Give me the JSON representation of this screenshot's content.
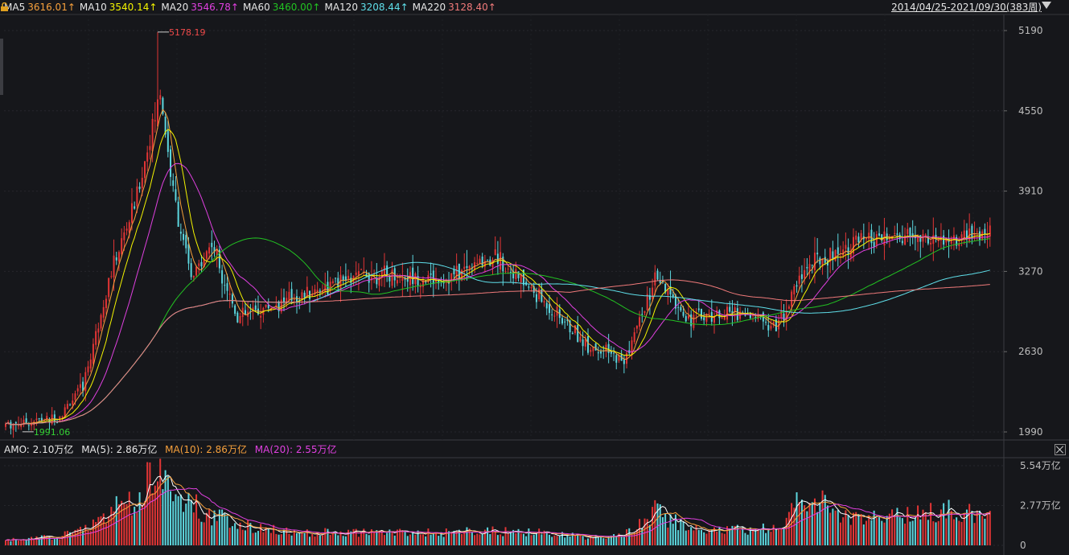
{
  "legend": {
    "items": [
      {
        "name": "MA5",
        "value": "3616.01↑",
        "color": "#f6a03c"
      },
      {
        "name": "MA10",
        "value": "3540.14↑",
        "color": "#f4f400"
      },
      {
        "name": "MA20",
        "value": "3546.78↑",
        "color": "#e040e0"
      },
      {
        "name": "MA60",
        "value": "3460.00↑",
        "color": "#22c222"
      },
      {
        "name": "MA120",
        "value": "3208.44↑",
        "color": "#5fdfea"
      },
      {
        "name": "MA220",
        "value": "3128.40↑",
        "color": "#f07a7a"
      }
    ],
    "range": "2014/04/25-2021/09/30(383周)"
  },
  "price_axis": {
    "ticks": [
      "5190",
      "4550",
      "3910",
      "3270",
      "2630",
      "1990"
    ]
  },
  "annotations": {
    "high": "5178.19",
    "low": "1991.06"
  },
  "volume_legend": {
    "amo": "AMO: 2.10万亿",
    "ma5": "MA(5): 2.86万亿",
    "ma10": "MA(10): 2.86万亿",
    "ma20": "MA(20): 2.55万亿"
  },
  "volume_axis": {
    "ticks": [
      "5.54万亿",
      "2.77万亿",
      "0"
    ]
  },
  "colors": {
    "up": "#e23535",
    "down": "#5cd6de",
    "background": "#16171b",
    "grid": "#2b2c31"
  },
  "chart_data": {
    "type": "candlestick",
    "period": "weekly",
    "date_range": "2014/04/25-2021/09/30",
    "bars": 383,
    "ylim": [
      1990,
      5190
    ],
    "high": 5178.19,
    "low": 1991.06,
    "volume_unit": "万亿",
    "volume_ylim": [
      0,
      5.54
    ],
    "series_points": [
      {
        "week": 0,
        "close": 2050,
        "vol": 0.35
      },
      {
        "week": 20,
        "close": 2100,
        "vol": 0.6
      },
      {
        "week": 30,
        "close": 2350,
        "vol": 1.1
      },
      {
        "week": 40,
        "close": 3200,
        "vol": 2.4
      },
      {
        "week": 50,
        "close": 3800,
        "vol": 3.0
      },
      {
        "week": 58,
        "close": 4500,
        "vol": 5.54
      },
      {
        "week": 60,
        "close": 4700,
        "vol": 4.6
      },
      {
        "week": 65,
        "close": 3900,
        "vol": 3.8
      },
      {
        "week": 72,
        "close": 3200,
        "vol": 2.9
      },
      {
        "week": 80,
        "close": 3500,
        "vol": 2.1
      },
      {
        "week": 90,
        "close": 2900,
        "vol": 1.5
      },
      {
        "week": 110,
        "close": 3050,
        "vol": 0.9
      },
      {
        "week": 140,
        "close": 3250,
        "vol": 0.9
      },
      {
        "week": 170,
        "close": 3200,
        "vol": 0.9
      },
      {
        "week": 190,
        "close": 3400,
        "vol": 1.0
      },
      {
        "week": 205,
        "close": 3100,
        "vol": 0.9
      },
      {
        "week": 225,
        "close": 2700,
        "vol": 0.6
      },
      {
        "week": 240,
        "close": 2550,
        "vol": 0.7
      },
      {
        "week": 252,
        "close": 3200,
        "vol": 2.4
      },
      {
        "week": 265,
        "close": 2900,
        "vol": 1.1
      },
      {
        "week": 285,
        "close": 2950,
        "vol": 1.1
      },
      {
        "week": 300,
        "close": 2850,
        "vol": 1.3
      },
      {
        "week": 310,
        "close": 3300,
        "vol": 3.4
      },
      {
        "week": 330,
        "close": 3500,
        "vol": 1.8
      },
      {
        "week": 350,
        "close": 3550,
        "vol": 2.0
      },
      {
        "week": 365,
        "close": 3500,
        "vol": 2.4
      },
      {
        "week": 382,
        "close": 3568,
        "vol": 2.1
      }
    ]
  }
}
